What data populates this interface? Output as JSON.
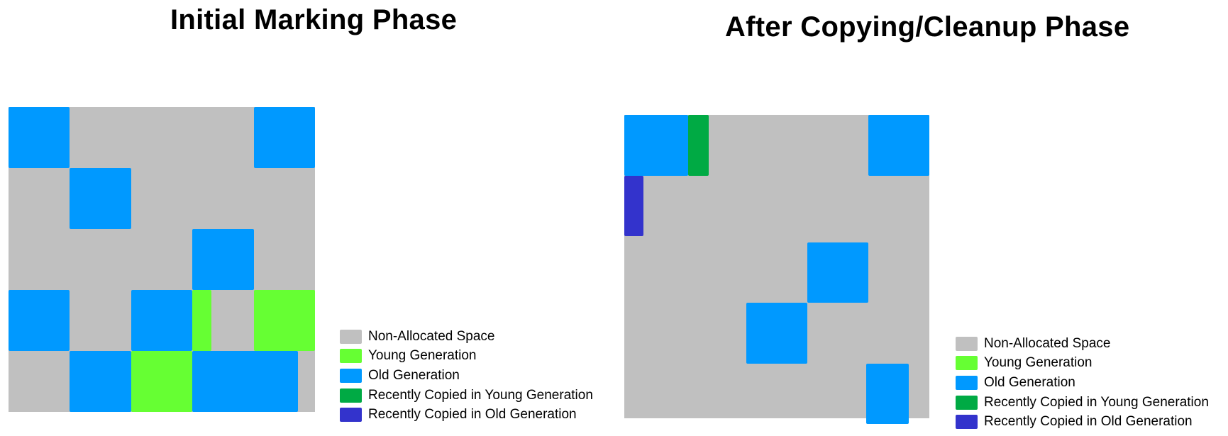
{
  "colors": {
    "non_allocated": "#c0c0c0",
    "young": "#66ff33",
    "old": "#0099ff",
    "copied_young": "#00aa44",
    "copied_old": "#3333cc"
  },
  "legend": [
    {
      "label": "Non-Allocated Space",
      "type": "non_allocated"
    },
    {
      "label": "Young Generation",
      "type": "young"
    },
    {
      "label": "Old Generation",
      "type": "old"
    },
    {
      "label": "Recently Copied in Young Generation",
      "type": "copied_young"
    },
    {
      "label": "Recently Copied in Old Generation",
      "type": "copied_old"
    }
  ],
  "panels": {
    "initial": {
      "title": "Initial Marking Phase",
      "regions": [
        {
          "type": "old",
          "row": 0,
          "col": 0,
          "w": 1,
          "h": 1
        },
        {
          "type": "old",
          "row": 0,
          "col": 4,
          "w": 1,
          "h": 1
        },
        {
          "type": "old",
          "row": 1,
          "col": 1,
          "w": 1,
          "h": 1
        },
        {
          "type": "old",
          "row": 2,
          "col": 3,
          "w": 1,
          "h": 1
        },
        {
          "type": "old",
          "row": 3,
          "col": 0,
          "w": 1,
          "h": 1
        },
        {
          "type": "old",
          "row": 3,
          "col": 2,
          "w": 1,
          "h": 1
        },
        {
          "type": "young",
          "row": 3,
          "col": 3,
          "w": 0.31,
          "h": 1
        },
        {
          "type": "young",
          "row": 3,
          "col": 4,
          "w": 1,
          "h": 1
        },
        {
          "type": "old",
          "row": 4,
          "col": 1,
          "w": 1,
          "h": 1
        },
        {
          "type": "young",
          "row": 4,
          "col": 2,
          "w": 1,
          "h": 1
        },
        {
          "type": "old",
          "row": 4,
          "col": 3,
          "w": 1.72,
          "h": 1
        }
      ]
    },
    "after": {
      "title": "After Copying/Cleanup Phase",
      "regions": [
        {
          "type": "old",
          "row": 0,
          "col": 0,
          "w": 1.05,
          "h": 1
        },
        {
          "type": "copied_young",
          "row": 0,
          "col": 1.05,
          "w": 0.33,
          "h": 1
        },
        {
          "type": "old",
          "row": 0,
          "col": 4,
          "w": 1,
          "h": 1
        },
        {
          "type": "copied_old",
          "row": 1,
          "col": 0,
          "w": 0.31,
          "h": 1
        },
        {
          "type": "old",
          "row": 2.1,
          "col": 3,
          "w": 1,
          "h": 1
        },
        {
          "type": "old",
          "row": 3.1,
          "col": 2,
          "w": 1,
          "h": 1
        },
        {
          "type": "old",
          "row": 4.1,
          "col": 3.96,
          "w": 0.7,
          "h": 0.99
        }
      ]
    }
  }
}
